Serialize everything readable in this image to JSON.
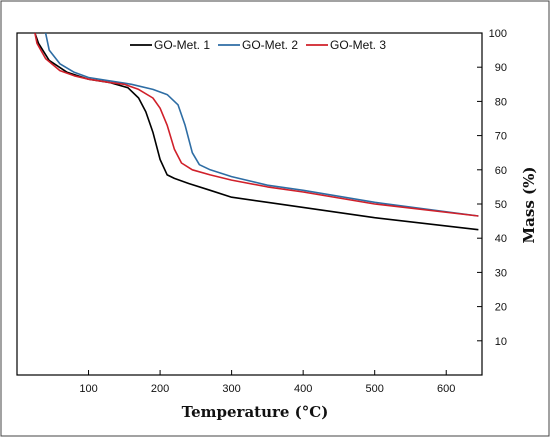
{
  "chart_data": {
    "type": "line",
    "title": "",
    "xlabel": "Temperature (°C)",
    "ylabel": "Mass (%)",
    "xlim": [
      0,
      650
    ],
    "ylim": [
      0,
      100
    ],
    "x_ticks": [
      100,
      200,
      300,
      400,
      500,
      600
    ],
    "y_ticks": [
      10,
      20,
      30,
      40,
      50,
      60,
      70,
      80,
      90,
      100
    ],
    "y_axis_side": "right",
    "grid": false,
    "legend_position": "top",
    "series": [
      {
        "name": "GO-Met. 1",
        "color": "#000000",
        "points": [
          [
            25,
            100
          ],
          [
            30,
            97
          ],
          [
            45,
            92
          ],
          [
            70,
            88.5
          ],
          [
            100,
            86.5
          ],
          [
            130,
            85.5
          ],
          [
            155,
            84
          ],
          [
            170,
            81
          ],
          [
            180,
            77
          ],
          [
            190,
            71
          ],
          [
            200,
            63
          ],
          [
            210,
            58.5
          ],
          [
            220,
            57.5
          ],
          [
            240,
            56
          ],
          [
            270,
            54
          ],
          [
            300,
            52
          ],
          [
            350,
            50.5
          ],
          [
            400,
            49
          ],
          [
            500,
            46
          ],
          [
            645,
            42.5
          ]
        ]
      },
      {
        "name": "GO-Met. 2",
        "color": "#2e6da4",
        "points": [
          [
            40,
            100
          ],
          [
            45,
            95
          ],
          [
            60,
            91
          ],
          [
            80,
            88.5
          ],
          [
            100,
            87
          ],
          [
            130,
            86
          ],
          [
            160,
            85
          ],
          [
            190,
            83.5
          ],
          [
            210,
            82
          ],
          [
            225,
            79
          ],
          [
            235,
            73
          ],
          [
            245,
            65
          ],
          [
            255,
            61.5
          ],
          [
            270,
            60
          ],
          [
            300,
            58
          ],
          [
            350,
            55.5
          ],
          [
            400,
            54
          ],
          [
            500,
            50.5
          ],
          [
            645,
            46.5
          ]
        ]
      },
      {
        "name": "GO-Met. 3",
        "color": "#d0202a",
        "points": [
          [
            25,
            100
          ],
          [
            28,
            97
          ],
          [
            40,
            92.5
          ],
          [
            60,
            89
          ],
          [
            80,
            87.5
          ],
          [
            100,
            86.5
          ],
          [
            130,
            85.5
          ],
          [
            150,
            85
          ],
          [
            170,
            83.5
          ],
          [
            190,
            81
          ],
          [
            200,
            78
          ],
          [
            210,
            73
          ],
          [
            220,
            66
          ],
          [
            230,
            62
          ],
          [
            245,
            60
          ],
          [
            270,
            58.5
          ],
          [
            300,
            57
          ],
          [
            350,
            55
          ],
          [
            400,
            53.5
          ],
          [
            500,
            50
          ],
          [
            645,
            46.5
          ]
        ]
      }
    ]
  }
}
